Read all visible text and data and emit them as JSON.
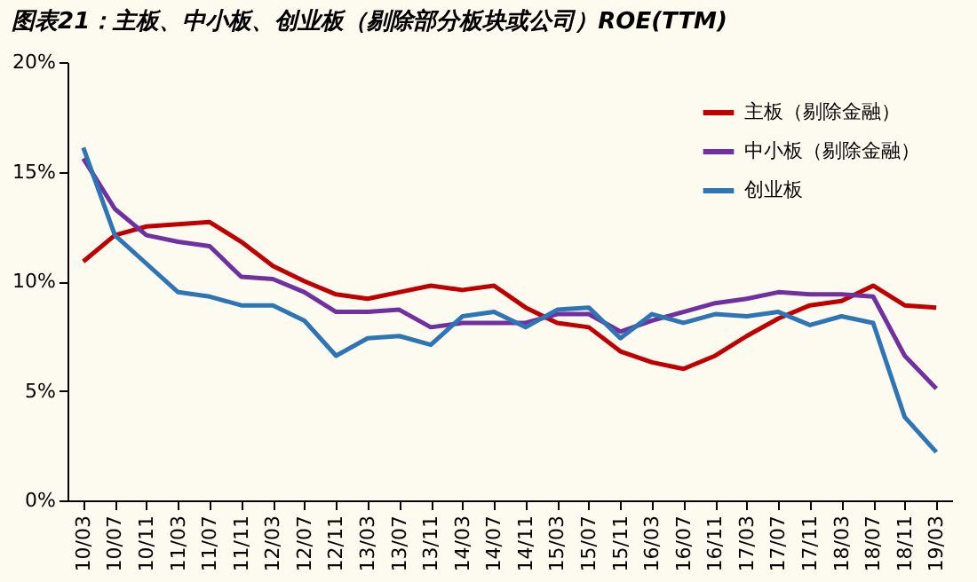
{
  "chart_data": {
    "type": "line",
    "title": "图表21：主板、中小板、创业板（剔除部分板块或公司）ROE(TTM)",
    "categories": [
      "10/03",
      "10/07",
      "10/11",
      "11/03",
      "11/07",
      "11/11",
      "12/03",
      "12/07",
      "12/11",
      "13/03",
      "13/07",
      "13/11",
      "14/03",
      "14/07",
      "14/11",
      "15/03",
      "15/07",
      "15/11",
      "16/03",
      "16/07",
      "16/11",
      "17/03",
      "17/07",
      "17/11",
      "18/03",
      "18/07",
      "18/11",
      "19/03"
    ],
    "series": [
      {
        "name": "主板（剔除金融）",
        "color": "#c00000",
        "values": [
          10.9,
          12.1,
          12.5,
          12.6,
          12.7,
          11.8,
          10.7,
          10.0,
          9.4,
          9.2,
          9.5,
          9.8,
          9.6,
          9.8,
          8.8,
          8.1,
          7.9,
          6.8,
          6.3,
          6.0,
          6.6,
          7.5,
          8.3,
          8.9,
          9.1,
          9.8,
          8.9,
          8.8
        ]
      },
      {
        "name": "中小板（剔除金融）",
        "color": "#7030a0",
        "values": [
          15.6,
          13.3,
          12.1,
          11.8,
          11.6,
          10.2,
          10.1,
          9.5,
          8.6,
          8.6,
          8.7,
          7.9,
          8.1,
          8.1,
          8.1,
          8.5,
          8.5,
          7.7,
          8.2,
          8.6,
          9.0,
          9.2,
          9.5,
          9.4,
          9.4,
          9.3,
          6.6,
          5.1
        ]
      },
      {
        "name": "创业板",
        "color": "#2e75b6",
        "values": [
          16.1,
          12.1,
          10.8,
          9.5,
          9.3,
          8.9,
          8.9,
          8.2,
          6.6,
          7.4,
          7.5,
          7.1,
          8.4,
          8.6,
          7.9,
          8.7,
          8.8,
          7.4,
          8.5,
          8.1,
          8.5,
          8.4,
          8.6,
          8.0,
          8.4,
          8.1,
          3.8,
          2.2
        ]
      }
    ],
    "ylim": [
      0,
      20
    ],
    "yticks": [
      {
        "value": 0,
        "label": "0%"
      },
      {
        "value": 5,
        "label": "5%"
      },
      {
        "value": 10,
        "label": "10%"
      },
      {
        "value": 15,
        "label": "15%"
      },
      {
        "value": 20,
        "label": "20%"
      }
    ],
    "legend": "top right",
    "marker": "none",
    "line_style": "solid"
  }
}
